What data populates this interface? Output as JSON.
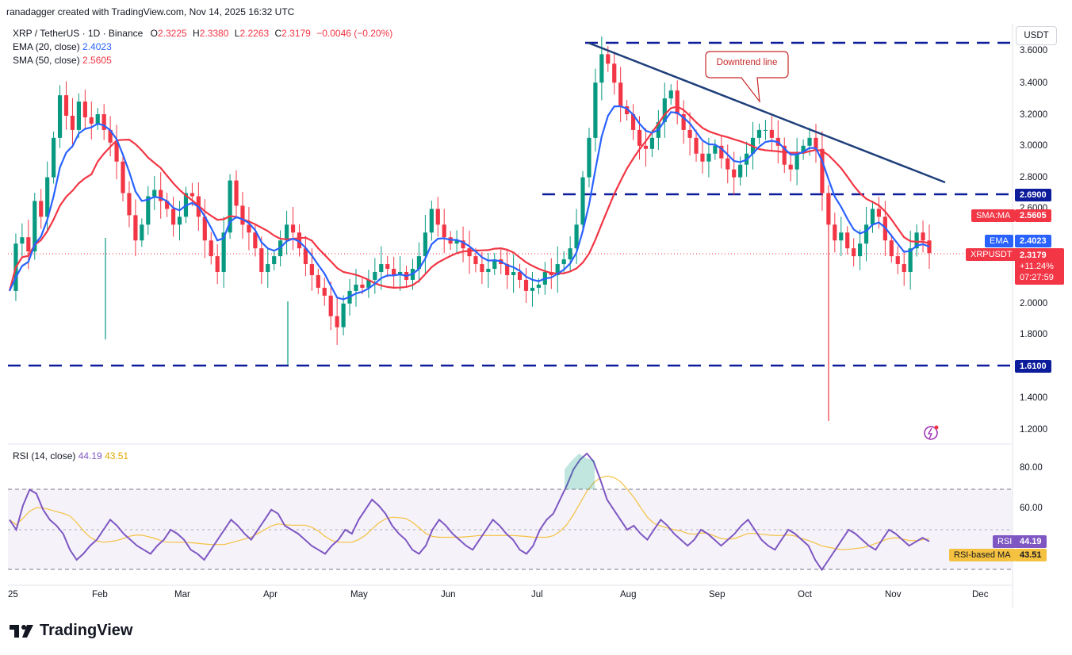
{
  "header": {
    "credit": "ranadagger created with TradingView.com, Nov 14, 2025 16:32 UTC"
  },
  "legend": {
    "symbol": "XRP / TetherUS · 1D · Binance",
    "o_label": "O",
    "o": "2.3225",
    "h_label": "H",
    "h": "2.3380",
    "l_label": "L",
    "l": "2.2263",
    "c_label": "C",
    "c": "2.3179",
    "change": "−0.0046 (−0.20%)",
    "ema_label": "EMA (20, close)",
    "ema_value": "2.4023",
    "sma_label": "SMA (50, close)",
    "sma_value": "2.5605"
  },
  "currency": "USDT",
  "price_axis": [
    "3.6000",
    "3.4000",
    "3.2000",
    "3.0000",
    "2.8000",
    "2.6000",
    "2.0000",
    "1.8000",
    "1.4000",
    "1.2000"
  ],
  "rsi_axis": [
    "80.00",
    "60.00"
  ],
  "x_axis": [
    "25",
    "Feb",
    "Mar",
    "Apr",
    "May",
    "Jun",
    "Jul",
    "Aug",
    "Sep",
    "Oct",
    "Nov",
    "Dec"
  ],
  "levels": {
    "resistance": "2.6900",
    "support": "1.6100"
  },
  "tags": {
    "sma_name": "SMA:MA",
    "sma_value": "2.5605",
    "ema_name": "EMA",
    "ema_value": "2.4023",
    "symbol": "XRPUSDT",
    "price": "2.3179",
    "pct": "+11.24%",
    "countdown": "07:27:59"
  },
  "annotation": "Downtrend line",
  "rsi": {
    "label": "RSI (14, close)",
    "value": "44.19",
    "ma_value": "43.51",
    "tag_name": "RSI",
    "tag_value": "44.19",
    "ma_name": "RSI-based MA",
    "ma_tag_value": "43.51"
  },
  "brand": "TradingView",
  "colors": {
    "ema": "#2962ff",
    "sma": "#f23645",
    "rsi": "#7e57c2",
    "rsi_ma": "#f5c140",
    "up": "#089981",
    "down": "#f23645",
    "level": "#0d1c9a",
    "trend": "#1e3f7a"
  },
  "chart_data": {
    "type": "candlestick",
    "symbol": "XRP / TetherUS",
    "timeframe": "1D",
    "currency": "USDT",
    "ylim": [
      1.2,
      3.7
    ],
    "horizontal_levels": [
      3.65,
      2.69,
      1.61
    ],
    "trend_line": {
      "from_price": 3.65,
      "to_price": 2.77,
      "from": "Jul 18",
      "to": "Nov 20"
    },
    "price_path": [
      2.08,
      2.38,
      2.42,
      2.33,
      2.65,
      2.55,
      2.8,
      3.05,
      3.32,
      3.19,
      3.1,
      3.28,
      3.18,
      3.14,
      3.2,
      3.1,
      3.02,
      2.9,
      2.7,
      2.56,
      2.4,
      2.5,
      2.68,
      2.72,
      2.65,
      2.6,
      2.5,
      2.55,
      2.7,
      2.68,
      2.55,
      2.4,
      2.3,
      2.2,
      2.45,
      2.78,
      2.62,
      2.5,
      2.45,
      2.35,
      2.2,
      2.25,
      2.3,
      2.4,
      2.5,
      2.45,
      2.35,
      2.25,
      2.18,
      2.1,
      2.05,
      1.92,
      1.85,
      2.0,
      2.08,
      2.12,
      2.1,
      2.15,
      2.2,
      2.25,
      2.22,
      2.18,
      2.2,
      2.15,
      2.22,
      2.3,
      2.45,
      2.6,
      2.5,
      2.42,
      2.38,
      2.4,
      2.35,
      2.3,
      2.25,
      2.2,
      2.22,
      2.28,
      2.25,
      2.18,
      2.2,
      2.15,
      2.08,
      2.1,
      2.12,
      2.2,
      2.18,
      2.25,
      2.28,
      2.35,
      2.5,
      2.8,
      3.05,
      3.4,
      3.58,
      3.52,
      3.4,
      3.25,
      3.2,
      3.1,
      3.0,
      2.98,
      3.05,
      3.15,
      3.3,
      3.35,
      3.2,
      3.1,
      3.05,
      2.95,
      2.9,
      2.95,
      3.0,
      2.92,
      2.85,
      2.8,
      2.88,
      2.95,
      3.05,
      3.1,
      3.1,
      3.05,
      3.0,
      2.88,
      2.85,
      2.95,
      3.0,
      3.05,
      2.98,
      2.7,
      2.5,
      2.4,
      2.45,
      2.35,
      2.3,
      2.38,
      2.5,
      2.6,
      2.55,
      2.4,
      2.3,
      2.25,
      2.2,
      2.35,
      2.45,
      2.4,
      2.32
    ],
    "ema20": {
      "label": "EMA (20, close)",
      "last": 2.4023
    },
    "sma50": {
      "label": "SMA (50, close)",
      "last": 2.5605
    },
    "last": {
      "open": 2.3225,
      "high": 2.338,
      "low": 2.2263,
      "close": 2.3179,
      "change": -0.0046,
      "change_pct": -0.2
    },
    "rsi_panel": {
      "label": "RSI (14, close)",
      "value": 44.19,
      "ma": 43.51,
      "bands": [
        70,
        50,
        30
      ],
      "ylim": [
        25,
        92
      ],
      "path": [
        55,
        50,
        62,
        70,
        68,
        60,
        55,
        52,
        48,
        40,
        35,
        38,
        42,
        45,
        50,
        55,
        52,
        48,
        45,
        42,
        40,
        38,
        42,
        45,
        50,
        48,
        45,
        40,
        38,
        35,
        40,
        45,
        50,
        55,
        52,
        48,
        45,
        50,
        55,
        60,
        58,
        52,
        50,
        48,
        45,
        42,
        40,
        38,
        42,
        45,
        50,
        48,
        55,
        60,
        65,
        62,
        58,
        52,
        48,
        45,
        40,
        38,
        42,
        50,
        55,
        52,
        48,
        45,
        42,
        40,
        45,
        50,
        55,
        52,
        48,
        45,
        40,
        38,
        42,
        50,
        55,
        58,
        65,
        72,
        80,
        85,
        88,
        84,
        75,
        65,
        60,
        55,
        50,
        52,
        48,
        45,
        50,
        55,
        52,
        48,
        45,
        42,
        45,
        50,
        48,
        45,
        42,
        45,
        48,
        52,
        55,
        50,
        45,
        42,
        40,
        45,
        50,
        48,
        45,
        42,
        35,
        30,
        35,
        40,
        45,
        50,
        48,
        45,
        42,
        40,
        45,
        50,
        48,
        45,
        42,
        44,
        46,
        44.19
      ]
    }
  }
}
